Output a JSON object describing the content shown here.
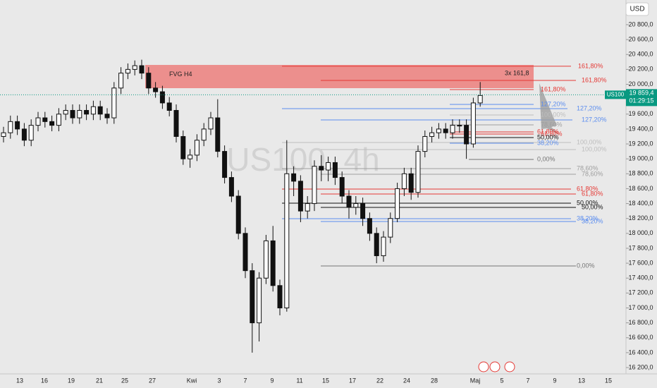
{
  "chart_data": {
    "type": "candlestick",
    "watermark": "US100, 4h",
    "currency": "USD",
    "symbol": "US100",
    "fvg_label": "FVG H4",
    "fvg_range": [
      19948,
      20260
    ],
    "extension_note": "3x 161,8",
    "last_price": {
      "value": 19859.4,
      "label": "19 859,4"
    },
    "countdown": "01:29:15",
    "categories": [
      "13",
      "16",
      "19",
      "21",
      "25",
      "27",
      "Kwi",
      "3",
      "7",
      "9",
      "11",
      "15",
      "17",
      "22",
      "24",
      "28",
      "Maj",
      "5",
      "7",
      "9",
      "13",
      "15"
    ],
    "ylim": [
      16115,
      21131
    ],
    "yticks": [
      {
        "value": 16200,
        "label": "16 200,0"
      },
      {
        "value": 16400,
        "label": "16 400,0"
      },
      {
        "value": 16600,
        "label": "16 600,0"
      },
      {
        "value": 16800,
        "label": "16 800,0"
      },
      {
        "value": 17000,
        "label": "17 000,0"
      },
      {
        "value": 17200,
        "label": "17 200,0"
      },
      {
        "value": 17400,
        "label": "17 400,0"
      },
      {
        "value": 17600,
        "label": "17 600,0"
      },
      {
        "value": 17800,
        "label": "17 800,0"
      },
      {
        "value": 18000,
        "label": "18 000,0"
      },
      {
        "value": 18200,
        "label": "18 200,0"
      },
      {
        "value": 18400,
        "label": "18 400,0"
      },
      {
        "value": 18600,
        "label": "18 600,0"
      },
      {
        "value": 18800,
        "label": "18 800,0"
      },
      {
        "value": 19000,
        "label": "19 000,0"
      },
      {
        "value": 19200,
        "label": "19 200,0"
      },
      {
        "value": 19400,
        "label": "19 400,0"
      },
      {
        "value": 19600,
        "label": "19 600,0"
      },
      {
        "value": 19800,
        "label": "19 800,0"
      },
      {
        "value": 20000,
        "label": "20 000,0"
      },
      {
        "value": 20200,
        "label": "20 200,0"
      },
      {
        "value": 20400,
        "label": "20 400,0"
      },
      {
        "value": 20600,
        "label": "20 600,0"
      },
      {
        "value": 20800,
        "label": "20 800,0"
      }
    ],
    "candles": {
      "open": [
        19300,
        19350,
        19500,
        19400,
        19250,
        19450,
        19550,
        19500,
        19450,
        19600,
        19650,
        19550,
        19650,
        19600,
        19700,
        19600,
        19550,
        19950,
        20150,
        20200,
        20250,
        20150,
        19950,
        19900,
        19750,
        19650,
        19300,
        19000,
        19050,
        19250,
        19400,
        19550,
        19100,
        18750,
        18500,
        18000,
        17500,
        16800,
        17400,
        17900,
        17300,
        17000,
        18800,
        18700,
        18300,
        18400,
        18900,
        18850,
        18950,
        18750,
        18500,
        18350,
        18400,
        18200,
        18000,
        17700,
        17950,
        18200,
        18600,
        18800,
        18550,
        19100,
        19300,
        19350,
        19400,
        19350,
        19450,
        19450,
        19200,
        19750
      ],
      "high": [
        19430,
        19580,
        19580,
        19480,
        19530,
        19630,
        19630,
        19580,
        19680,
        19730,
        19730,
        19730,
        19730,
        19780,
        19780,
        19680,
        20030,
        20230,
        20280,
        20320,
        20330,
        20230,
        20030,
        19980,
        19830,
        19730,
        19380,
        19130,
        19330,
        19480,
        19630,
        19800,
        19180,
        18830,
        18580,
        18080,
        17600,
        17480,
        17980,
        18100,
        17380,
        19250,
        18900,
        18780,
        18500,
        18980,
        19050,
        19030,
        19030,
        18830,
        18580,
        18500,
        18480,
        18280,
        18080,
        18030,
        18280,
        18680,
        18880,
        18880,
        19180,
        19380,
        19430,
        19480,
        19480,
        19530,
        19530,
        19530,
        19820,
        20030
      ],
      "low": [
        19220,
        19270,
        19320,
        19170,
        19170,
        19370,
        19420,
        19370,
        19370,
        19520,
        19470,
        19470,
        19520,
        19520,
        19520,
        19470,
        19470,
        19870,
        20070,
        20120,
        20070,
        19870,
        19820,
        19670,
        19570,
        19220,
        18920,
        18880,
        18970,
        19170,
        19320,
        19020,
        18670,
        18420,
        17920,
        17400,
        16400,
        16550,
        17320,
        17220,
        16900,
        16950,
        18500,
        18150,
        18200,
        18300,
        18700,
        18700,
        18650,
        18400,
        18200,
        18250,
        18100,
        17900,
        17600,
        17620,
        17870,
        18150,
        18500,
        18450,
        18480,
        19020,
        19220,
        19270,
        19270,
        19270,
        19350,
        19000,
        19150,
        19700
      ],
      "close": [
        19350,
        19500,
        19400,
        19250,
        19450,
        19550,
        19500,
        19450,
        19600,
        19650,
        19550,
        19650,
        19600,
        19700,
        19600,
        19550,
        19950,
        20150,
        20200,
        20250,
        20150,
        19950,
        19900,
        19750,
        19650,
        19300,
        19000,
        19050,
        19250,
        19400,
        19550,
        19100,
        18750,
        18500,
        18000,
        17500,
        16800,
        17400,
        17900,
        17300,
        17000,
        18800,
        18700,
        18300,
        18400,
        18900,
        18850,
        18950,
        18750,
        18500,
        18350,
        18400,
        18200,
        18000,
        17700,
        17950,
        18200,
        18600,
        18800,
        18550,
        19100,
        19300,
        19350,
        19400,
        19350,
        19450,
        19450,
        19200,
        19750,
        19850
      ]
    },
    "levels": [
      {
        "label": "161,80%",
        "value": 20242,
        "color": "#e53935"
      },
      {
        "label": "161,80%",
        "value": 20052,
        "color": "#e53935"
      },
      {
        "label": "161,80%",
        "value": 19929,
        "color": "#e53935"
      },
      {
        "label": "127,20%",
        "value": 19730,
        "color": "#5b8def"
      },
      {
        "label": "127,20%",
        "value": 19674,
        "color": "#5b8def"
      },
      {
        "label": "127,20%",
        "value": 19522,
        "color": "#5b8def"
      },
      {
        "label": "100,00%",
        "value": 19588,
        "color": "#bdbdbd"
      },
      {
        "label": "78,60%",
        "value": 19456,
        "color": "#9e9e9e"
      },
      {
        "label": "61,80%",
        "value": 19361,
        "color": "#e53935"
      },
      {
        "label": "61,80%",
        "value": 19333,
        "color": "#e53935"
      },
      {
        "label": "50,00%",
        "value": 19286,
        "color": "#111111"
      },
      {
        "label": "38,20%",
        "value": 19210,
        "color": "#5b8def"
      },
      {
        "label": "100,00%",
        "value": 19219,
        "color": "#bdbdbd"
      },
      {
        "label": "100,00%",
        "value": 19125,
        "color": "#bdbdbd"
      },
      {
        "label": "0,00%",
        "value": 18992,
        "color": "#757575"
      },
      {
        "label": "78,60%",
        "value": 18869,
        "color": "#9e9e9e"
      },
      {
        "label": "78,60%",
        "value": 18793,
        "color": "#9e9e9e"
      },
      {
        "label": "61,80%",
        "value": 18595,
        "color": "#e53935"
      },
      {
        "label": "61,80%",
        "value": 18528,
        "color": "#e53935"
      },
      {
        "label": "50,00%",
        "value": 18405,
        "color": "#111111"
      },
      {
        "label": "50,00%",
        "value": 18349,
        "color": "#111111"
      },
      {
        "label": "38,20%",
        "value": 18197,
        "color": "#5b8def"
      },
      {
        "label": "38,20%",
        "value": 18159,
        "color": "#5b8def"
      },
      {
        "label": "0,00%",
        "value": 17563,
        "color": "#757575"
      }
    ]
  }
}
